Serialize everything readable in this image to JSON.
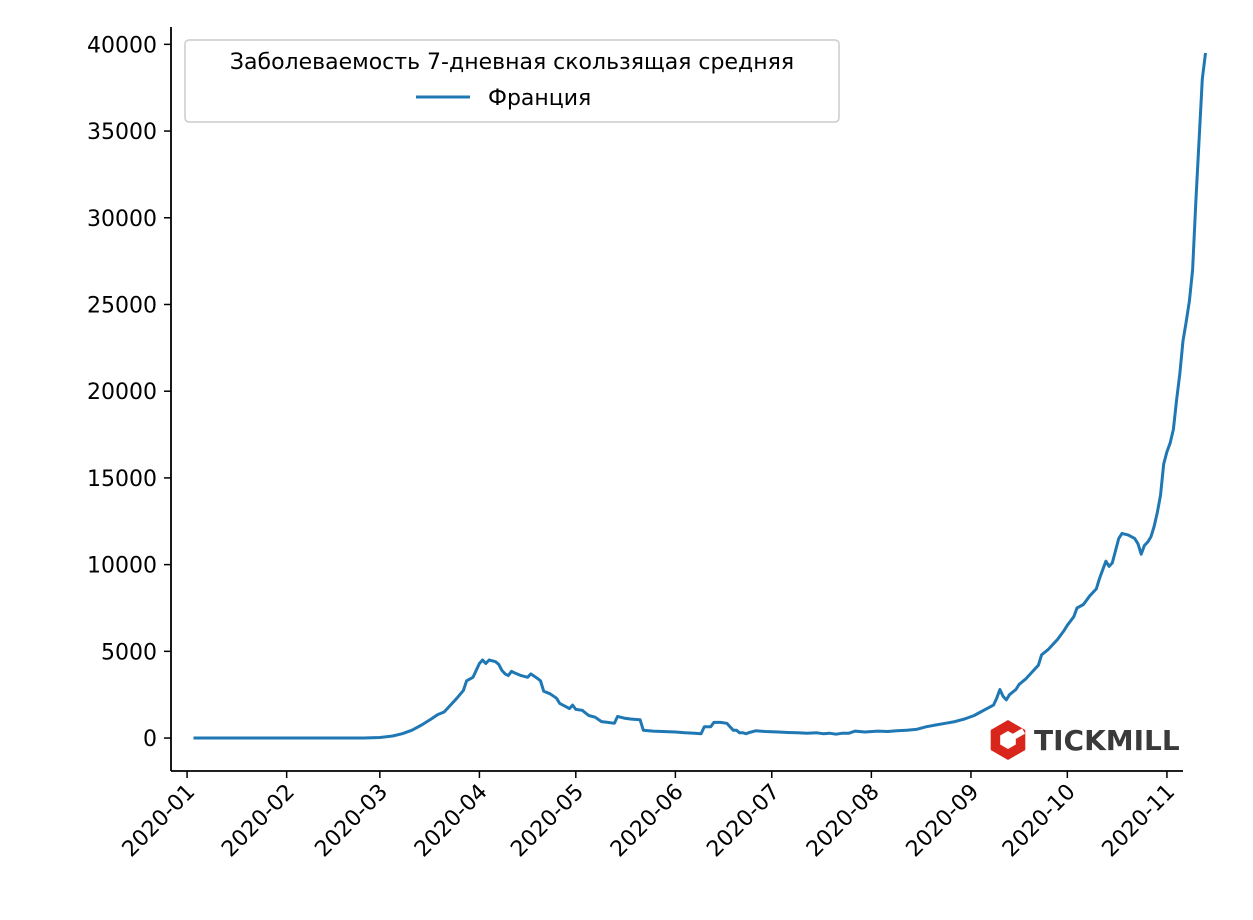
{
  "chart_data": {
    "type": "line",
    "title": "",
    "xlabel": "",
    "ylabel": "",
    "legend": {
      "title": "Заболеваемость 7-дневная скользящая средняя",
      "placement": "top-left"
    },
    "x_ticks": [
      "2020-01",
      "2020-02",
      "2020-03",
      "2020-04",
      "2020-05",
      "2020-06",
      "2020-07",
      "2020-08",
      "2020-09",
      "2020-10",
      "2020-11"
    ],
    "y_ticks": [
      0,
      5000,
      10000,
      15000,
      20000,
      25000,
      30000,
      35000,
      40000
    ],
    "ylim": [
      -1900,
      41000
    ],
    "xlim": [
      "2019-12-27",
      "2020-11-06"
    ],
    "grid": false,
    "series": [
      {
        "name": "Франция",
        "color": "#1f77b4",
        "points": [
          [
            "2020-01-03",
            0
          ],
          [
            "2020-01-15",
            0
          ],
          [
            "2020-02-01",
            0
          ],
          [
            "2020-02-15",
            0
          ],
          [
            "2020-02-25",
            5
          ],
          [
            "2020-03-01",
            30
          ],
          [
            "2020-03-05",
            120
          ],
          [
            "2020-03-08",
            250
          ],
          [
            "2020-03-11",
            450
          ],
          [
            "2020-03-14",
            750
          ],
          [
            "2020-03-17",
            1100
          ],
          [
            "2020-03-19",
            1350
          ],
          [
            "2020-03-21",
            1500
          ],
          [
            "2020-03-23",
            1900
          ],
          [
            "2020-03-25",
            2300
          ],
          [
            "2020-03-27",
            2750
          ],
          [
            "2020-03-28",
            3300
          ],
          [
            "2020-03-30",
            3500
          ],
          [
            "2020-04-01",
            4300
          ],
          [
            "2020-04-02",
            4500
          ],
          [
            "2020-04-03",
            4300
          ],
          [
            "2020-04-04",
            4500
          ],
          [
            "2020-04-06",
            4400
          ],
          [
            "2020-04-07",
            4250
          ],
          [
            "2020-04-08",
            3900
          ],
          [
            "2020-04-09",
            3700
          ],
          [
            "2020-04-10",
            3600
          ],
          [
            "2020-04-11",
            3850
          ],
          [
            "2020-04-12",
            3750
          ],
          [
            "2020-04-14",
            3600
          ],
          [
            "2020-04-16",
            3500
          ],
          [
            "2020-04-17",
            3700
          ],
          [
            "2020-04-19",
            3450
          ],
          [
            "2020-04-20",
            3300
          ],
          [
            "2020-04-21",
            2700
          ],
          [
            "2020-04-23",
            2550
          ],
          [
            "2020-04-25",
            2300
          ],
          [
            "2020-04-26",
            2000
          ],
          [
            "2020-04-28",
            1800
          ],
          [
            "2020-04-29",
            1700
          ],
          [
            "2020-04-30",
            1900
          ],
          [
            "2020-05-01",
            1650
          ],
          [
            "2020-05-03",
            1600
          ],
          [
            "2020-05-05",
            1300
          ],
          [
            "2020-05-07",
            1200
          ],
          [
            "2020-05-09",
            950
          ],
          [
            "2020-05-11",
            900
          ],
          [
            "2020-05-13",
            850
          ],
          [
            "2020-05-14",
            1250
          ],
          [
            "2020-05-16",
            1150
          ],
          [
            "2020-05-18",
            1100
          ],
          [
            "2020-05-21",
            1050
          ],
          [
            "2020-05-22",
            450
          ],
          [
            "2020-05-25",
            400
          ],
          [
            "2020-05-28",
            380
          ],
          [
            "2020-06-01",
            350
          ],
          [
            "2020-06-04",
            300
          ],
          [
            "2020-06-07",
            280
          ],
          [
            "2020-06-09",
            250
          ],
          [
            "2020-06-10",
            650
          ],
          [
            "2020-06-12",
            650
          ],
          [
            "2020-06-13",
            900
          ],
          [
            "2020-06-15",
            900
          ],
          [
            "2020-06-17",
            850
          ],
          [
            "2020-06-18",
            650
          ],
          [
            "2020-06-19",
            450
          ],
          [
            "2020-06-20",
            450
          ],
          [
            "2020-06-21",
            300
          ],
          [
            "2020-06-22",
            300
          ],
          [
            "2020-06-23",
            250
          ],
          [
            "2020-06-24",
            320
          ],
          [
            "2020-06-26",
            420
          ],
          [
            "2020-06-29",
            380
          ],
          [
            "2020-07-03",
            350
          ],
          [
            "2020-07-06",
            320
          ],
          [
            "2020-07-09",
            300
          ],
          [
            "2020-07-12",
            280
          ],
          [
            "2020-07-15",
            300
          ],
          [
            "2020-07-17",
            250
          ],
          [
            "2020-07-19",
            280
          ],
          [
            "2020-07-21",
            220
          ],
          [
            "2020-07-23",
            280
          ],
          [
            "2020-07-25",
            280
          ],
          [
            "2020-07-27",
            400
          ],
          [
            "2020-07-30",
            350
          ],
          [
            "2020-08-03",
            400
          ],
          [
            "2020-08-06",
            380
          ],
          [
            "2020-08-09",
            420
          ],
          [
            "2020-08-12",
            450
          ],
          [
            "2020-08-15",
            500
          ],
          [
            "2020-08-18",
            650
          ],
          [
            "2020-08-21",
            750
          ],
          [
            "2020-08-24",
            850
          ],
          [
            "2020-08-27",
            950
          ],
          [
            "2020-08-30",
            1100
          ],
          [
            "2020-09-02",
            1300
          ],
          [
            "2020-09-04",
            1500
          ],
          [
            "2020-09-06",
            1700
          ],
          [
            "2020-09-08",
            1900
          ],
          [
            "2020-09-09",
            2300
          ],
          [
            "2020-09-10",
            2800
          ],
          [
            "2020-09-11",
            2400
          ],
          [
            "2020-09-12",
            2200
          ],
          [
            "2020-09-13",
            2500
          ],
          [
            "2020-09-15",
            2800
          ],
          [
            "2020-09-16",
            3100
          ],
          [
            "2020-09-18",
            3400
          ],
          [
            "2020-09-20",
            3800
          ],
          [
            "2020-09-22",
            4200
          ],
          [
            "2020-09-23",
            4800
          ],
          [
            "2020-09-25",
            5100
          ],
          [
            "2020-09-27",
            5500
          ],
          [
            "2020-09-28",
            5700
          ],
          [
            "2020-09-30",
            6200
          ],
          [
            "2020-10-01",
            6500
          ],
          [
            "2020-10-03",
            7000
          ],
          [
            "2020-10-04",
            7500
          ],
          [
            "2020-10-06",
            7700
          ],
          [
            "2020-10-08",
            8200
          ],
          [
            "2020-10-10",
            8600
          ],
          [
            "2020-10-11",
            9200
          ],
          [
            "2020-10-12",
            9700
          ],
          [
            "2020-10-13",
            10200
          ],
          [
            "2020-10-14",
            9900
          ],
          [
            "2020-10-15",
            10100
          ],
          [
            "2020-10-16",
            10800
          ],
          [
            "2020-10-17",
            11500
          ],
          [
            "2020-10-18",
            11800
          ],
          [
            "2020-10-20",
            11700
          ],
          [
            "2020-10-22",
            11500
          ],
          [
            "2020-10-23",
            11200
          ],
          [
            "2020-10-24",
            10600
          ],
          [
            "2020-10-25",
            11100
          ],
          [
            "2020-10-26",
            11300
          ],
          [
            "2020-10-27",
            11600
          ],
          [
            "2020-10-28",
            12200
          ],
          [
            "2020-10-29",
            13000
          ],
          [
            "2020-10-30",
            14000
          ],
          [
            "2020-10-31",
            15800
          ],
          [
            "2020-11-01",
            16500
          ],
          [
            "2020-11-02",
            17000
          ],
          [
            "2020-11-03",
            17800
          ],
          [
            "2020-11-04",
            19500
          ],
          [
            "2020-11-05",
            21000
          ],
          [
            "2020-11-06",
            22900
          ],
          [
            "2020-11-07",
            24000
          ],
          [
            "2020-11-08",
            25200
          ],
          [
            "2020-11-09",
            27000
          ],
          [
            "2020-11-10",
            31000
          ],
          [
            "2020-11-11",
            34500
          ],
          [
            "2020-11-12",
            38000
          ],
          [
            "2020-11-13",
            39500
          ]
        ]
      }
    ]
  },
  "brand": {
    "logo_text": "TICKMILL",
    "logo_icon": "tickmill-hexagon-icon",
    "logo_color": "#d9261c"
  }
}
